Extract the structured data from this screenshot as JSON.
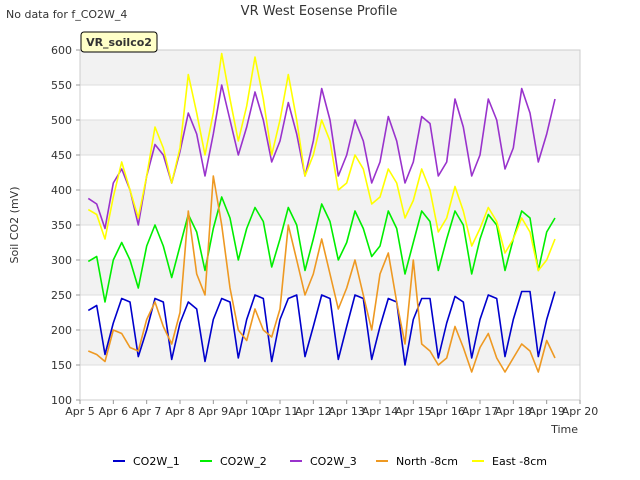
{
  "notice": "No data for f_CO2W_4",
  "badge": "VR_soilco2",
  "chart_data": {
    "type": "line",
    "title": "VR West Eosense Profile",
    "xlabel": "Time",
    "ylabel": "Soil CO2 (mV)",
    "xlim": [
      5,
      20
    ],
    "ylim": [
      100,
      600
    ],
    "x_ticks": [
      5,
      6,
      7,
      8,
      9,
      10,
      11,
      12,
      13,
      14,
      15,
      16,
      17,
      18,
      19,
      20
    ],
    "x_tick_labels": [
      "Apr 5",
      "Apr 6",
      "Apr 7",
      "Apr 8",
      "Apr 9",
      "Apr 10",
      "Apr 11",
      "Apr 12",
      "Apr 13",
      "Apr 14",
      "Apr 15",
      "Apr 16",
      "Apr 17",
      "Apr 18",
      "Apr 19",
      "Apr 20"
    ],
    "y_ticks": [
      100,
      150,
      200,
      250,
      300,
      350,
      400,
      450,
      500,
      550,
      600
    ],
    "grid": "horizontal bands",
    "legend_position": "bottom",
    "series": [
      {
        "name": "CO2W_1",
        "color": "#0000cc",
        "x": [
          5.25,
          5.5,
          5.75,
          6.0,
          6.25,
          6.5,
          6.75,
          7.0,
          7.25,
          7.5,
          7.75,
          8.0,
          8.25,
          8.5,
          8.75,
          9.0,
          9.25,
          9.5,
          9.75,
          10.0,
          10.25,
          10.5,
          10.75,
          11.0,
          11.25,
          11.5,
          11.75,
          12.0,
          12.25,
          12.5,
          12.75,
          13.0,
          13.25,
          13.5,
          13.75,
          14.0,
          14.25,
          14.5,
          14.75,
          15.0,
          15.25,
          15.5,
          15.75,
          16.0,
          16.25,
          16.5,
          16.75,
          17.0,
          17.25,
          17.5,
          17.75,
          18.0,
          18.25,
          18.5,
          18.75,
          19.0,
          19.25
        ],
        "y": [
          228,
          235,
          165,
          210,
          245,
          240,
          162,
          200,
          245,
          240,
          158,
          210,
          240,
          230,
          155,
          215,
          245,
          240,
          160,
          215,
          250,
          245,
          155,
          215,
          245,
          250,
          162,
          205,
          250,
          245,
          158,
          205,
          250,
          245,
          158,
          205,
          245,
          240,
          150,
          215,
          245,
          245,
          160,
          210,
          248,
          240,
          160,
          215,
          250,
          245,
          162,
          215,
          255,
          255,
          162,
          215,
          255
        ]
      },
      {
        "name": "CO2W_2",
        "color": "#00ee00",
        "x": [
          5.25,
          5.5,
          5.75,
          6.0,
          6.25,
          6.5,
          6.75,
          7.0,
          7.25,
          7.5,
          7.75,
          8.0,
          8.25,
          8.5,
          8.75,
          9.0,
          9.25,
          9.5,
          9.75,
          10.0,
          10.25,
          10.5,
          10.75,
          11.0,
          11.25,
          11.5,
          11.75,
          12.0,
          12.25,
          12.5,
          12.75,
          13.0,
          13.25,
          13.5,
          13.75,
          14.0,
          14.25,
          14.5,
          14.75,
          15.0,
          15.25,
          15.5,
          15.75,
          16.0,
          16.25,
          16.5,
          16.75,
          17.0,
          17.25,
          17.5,
          17.75,
          18.0,
          18.25,
          18.5,
          18.75,
          19.0,
          19.25
        ],
        "y": [
          298,
          305,
          240,
          300,
          325,
          300,
          260,
          320,
          350,
          320,
          275,
          320,
          365,
          340,
          285,
          345,
          390,
          360,
          300,
          345,
          375,
          355,
          290,
          330,
          375,
          350,
          285,
          330,
          380,
          355,
          300,
          325,
          370,
          345,
          305,
          320,
          370,
          345,
          280,
          325,
          370,
          355,
          285,
          330,
          370,
          350,
          280,
          330,
          365,
          350,
          285,
          330,
          370,
          360,
          285,
          340,
          360
        ]
      },
      {
        "name": "CO2W_3",
        "color": "#9933cc",
        "x": [
          5.25,
          5.5,
          5.75,
          6.0,
          6.25,
          6.5,
          6.75,
          7.0,
          7.25,
          7.5,
          7.75,
          8.0,
          8.25,
          8.5,
          8.75,
          9.0,
          9.25,
          9.5,
          9.75,
          10.0,
          10.25,
          10.5,
          10.75,
          11.0,
          11.25,
          11.5,
          11.75,
          12.0,
          12.25,
          12.5,
          12.75,
          13.0,
          13.25,
          13.5,
          13.75,
          14.0,
          14.25,
          14.5,
          14.75,
          15.0,
          15.25,
          15.5,
          15.75,
          16.0,
          16.25,
          16.5,
          16.75,
          17.0,
          17.25,
          17.5,
          17.75,
          18.0,
          18.25,
          18.5,
          18.75,
          19.0,
          19.25
        ],
        "y": [
          388,
          380,
          345,
          410,
          430,
          400,
          350,
          420,
          465,
          450,
          410,
          455,
          510,
          480,
          420,
          480,
          550,
          500,
          450,
          490,
          540,
          500,
          440,
          470,
          525,
          480,
          420,
          470,
          545,
          500,
          420,
          450,
          500,
          470,
          410,
          440,
          505,
          470,
          410,
          440,
          505,
          495,
          420,
          440,
          530,
          490,
          420,
          450,
          530,
          500,
          430,
          460,
          545,
          510,
          440,
          480,
          530
        ]
      },
      {
        "name": "North -8cm",
        "color": "#ee9922",
        "x": [
          5.25,
          5.5,
          5.75,
          6.0,
          6.25,
          6.5,
          6.75,
          7.0,
          7.25,
          7.5,
          7.75,
          8.0,
          8.25,
          8.5,
          8.75,
          9.0,
          9.25,
          9.5,
          9.75,
          10.0,
          10.25,
          10.5,
          10.75,
          11.0,
          11.25,
          11.5,
          11.75,
          12.0,
          12.25,
          12.5,
          12.75,
          13.0,
          13.25,
          13.5,
          13.75,
          14.0,
          14.25,
          14.5,
          14.75,
          15.0,
          15.25,
          15.5,
          15.75,
          16.0,
          16.25,
          16.5,
          16.75,
          17.0,
          17.25,
          17.5,
          17.75,
          18.0,
          18.25,
          18.5,
          18.75,
          19.0,
          19.25
        ],
        "y": [
          170,
          165,
          155,
          200,
          195,
          175,
          170,
          215,
          240,
          205,
          180,
          225,
          370,
          280,
          250,
          420,
          350,
          260,
          200,
          185,
          230,
          200,
          190,
          230,
          350,
          300,
          250,
          280,
          330,
          280,
          230,
          260,
          300,
          250,
          200,
          280,
          310,
          240,
          180,
          300,
          180,
          170,
          150,
          160,
          205,
          175,
          140,
          175,
          195,
          160,
          140,
          160,
          180,
          170,
          140,
          185,
          160
        ]
      },
      {
        "name": "East -8cm",
        "color": "#ffff00",
        "x": [
          5.25,
          5.5,
          5.75,
          6.0,
          6.25,
          6.5,
          6.75,
          7.0,
          7.25,
          7.5,
          7.75,
          8.0,
          8.25,
          8.5,
          8.75,
          9.0,
          9.25,
          9.5,
          9.75,
          10.0,
          10.25,
          10.5,
          10.75,
          11.0,
          11.25,
          11.5,
          11.75,
          12.0,
          12.25,
          12.5,
          12.75,
          13.0,
          13.25,
          13.5,
          13.75,
          14.0,
          14.25,
          14.5,
          14.75,
          15.0,
          15.25,
          15.5,
          15.75,
          16.0,
          16.25,
          16.5,
          16.75,
          17.0,
          17.25,
          17.5,
          17.75,
          18.0,
          18.25,
          18.5,
          18.75,
          19.0,
          19.25
        ],
        "y": [
          372,
          365,
          330,
          390,
          440,
          400,
          360,
          420,
          490,
          460,
          410,
          460,
          565,
          510,
          450,
          510,
          595,
          530,
          470,
          520,
          590,
          530,
          450,
          500,
          565,
          500,
          420,
          450,
          500,
          470,
          400,
          410,
          450,
          430,
          380,
          390,
          430,
          410,
          360,
          385,
          430,
          400,
          340,
          360,
          405,
          370,
          320,
          345,
          375,
          355,
          310,
          330,
          360,
          340,
          285,
          300,
          330
        ]
      }
    ]
  }
}
